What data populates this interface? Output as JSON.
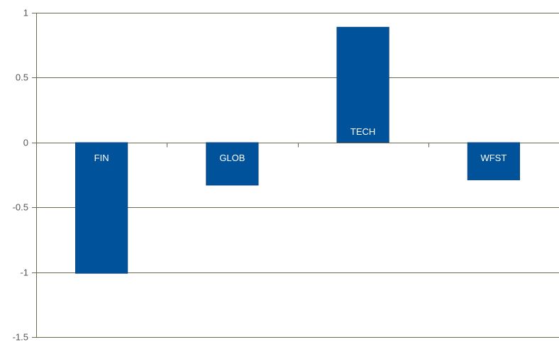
{
  "chart_data": {
    "type": "bar",
    "categories": [
      "FIN",
      "GLOB",
      "TECH",
      "WFST"
    ],
    "values": [
      -1.01,
      -0.33,
      0.89,
      -0.29
    ],
    "title": "",
    "xlabel": "",
    "ylabel": "",
    "ylim": [
      -1.5,
      1
    ],
    "yticks": [
      1,
      0.5,
      0,
      -0.5,
      -1,
      -1.5
    ],
    "ytick_labels": [
      "1",
      "0.5",
      "0",
      "-0.5",
      "-1",
      "-1.5"
    ],
    "grid": true,
    "legend": "none",
    "colors": {
      "bar": "#00529B",
      "bar_label": "#FFFFFF",
      "grid": "#6B6B4F",
      "tick_text": "#555555"
    }
  }
}
